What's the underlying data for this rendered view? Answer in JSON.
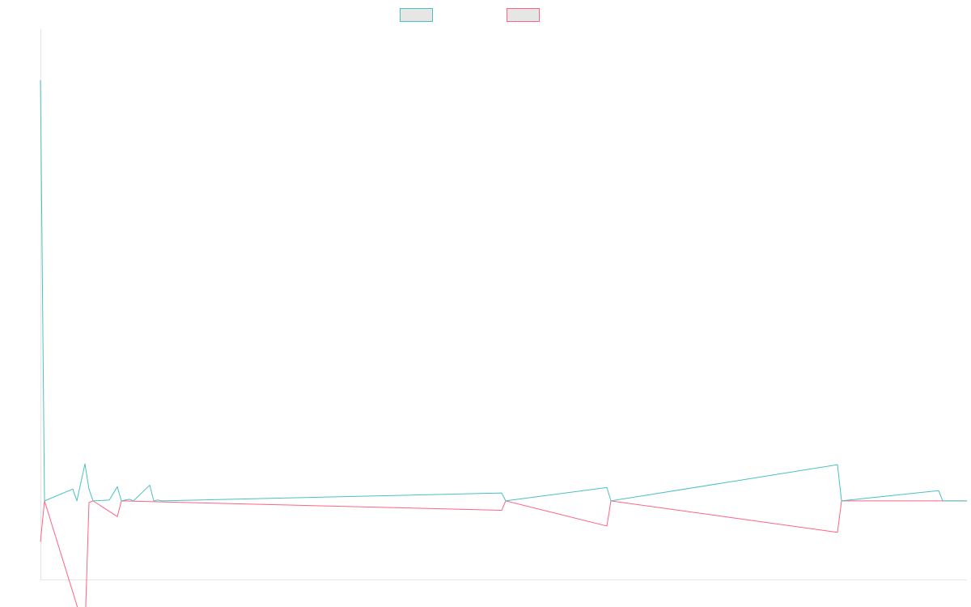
{
  "chart_data": {
    "type": "line",
    "title": "",
    "xlabel": "",
    "ylabel": "",
    "grid": false,
    "legend_position": "top-center",
    "ylim": [
      -100,
      600
    ],
    "baseline": 0,
    "x_count": 230,
    "colors": {
      "series_a": "#4bc0c0",
      "series_b": "#ff6384",
      "axis": "#e5e5e5",
      "legend_fill": "#e6e6e6"
    },
    "series": [
      {
        "key": "series_a",
        "name": "",
        "points": [
          [
            0,
            535
          ],
          [
            1,
            0
          ],
          [
            8,
            15
          ],
          [
            9,
            0
          ],
          [
            11,
            47
          ],
          [
            12,
            15
          ],
          [
            13,
            0
          ],
          [
            17,
            1
          ],
          [
            19,
            18
          ],
          [
            20,
            0
          ],
          [
            22,
            2
          ],
          [
            23,
            0
          ],
          [
            27,
            20
          ],
          [
            28,
            0
          ],
          [
            29,
            1
          ],
          [
            30,
            0
          ],
          [
            114,
            10
          ],
          [
            115,
            0
          ],
          [
            140,
            17
          ],
          [
            141,
            0
          ],
          [
            197,
            46
          ],
          [
            198,
            0
          ],
          [
            222,
            13
          ],
          [
            223,
            0
          ],
          [
            229,
            0
          ]
        ]
      },
      {
        "key": "series_b",
        "name": "",
        "points": [
          [
            0,
            -52
          ],
          [
            1,
            0
          ],
          [
            11,
            -166
          ],
          [
            12,
            -2
          ],
          [
            13,
            0
          ],
          [
            19,
            -20
          ],
          [
            20,
            0
          ],
          [
            114,
            -12
          ],
          [
            115,
            0
          ],
          [
            140,
            -32
          ],
          [
            141,
            0
          ],
          [
            197,
            -40
          ],
          [
            198,
            0
          ],
          [
            229,
            0
          ]
        ]
      }
    ]
  }
}
